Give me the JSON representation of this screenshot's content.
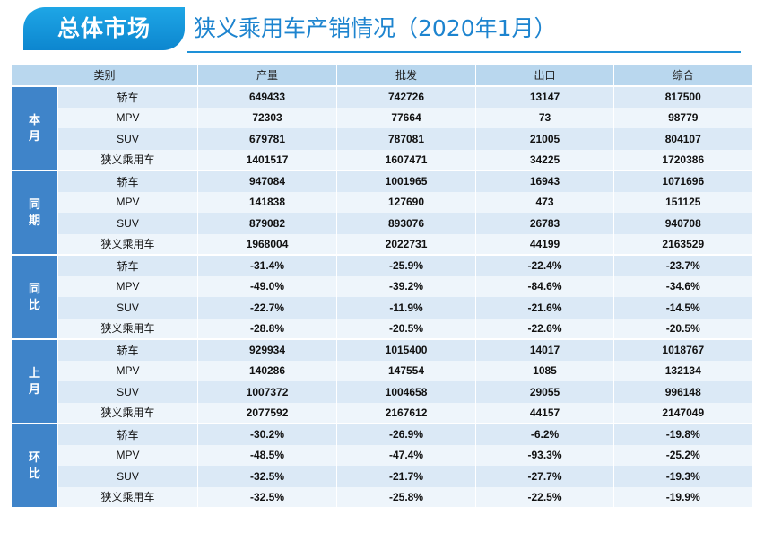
{
  "header": {
    "badge": "总体市场",
    "title": "狭义乘用车产销情况（2020年1月）"
  },
  "table": {
    "columns": [
      "类别",
      "产量",
      "批发",
      "出口",
      "综合"
    ],
    "groups": [
      {
        "label": "本\n月",
        "rows": [
          {
            "category": "轿车",
            "production": "649433",
            "wholesale": "742726",
            "export": "13147",
            "total": "817500"
          },
          {
            "category": "MPV",
            "production": "72303",
            "wholesale": "77664",
            "export": "73",
            "total": "98779"
          },
          {
            "category": "SUV",
            "production": "679781",
            "wholesale": "787081",
            "export": "21005",
            "total": "804107"
          },
          {
            "category": "狭义乘用车",
            "production": "1401517",
            "wholesale": "1607471",
            "export": "34225",
            "total": "1720386"
          }
        ]
      },
      {
        "label": "同\n期",
        "rows": [
          {
            "category": "轿车",
            "production": "947084",
            "wholesale": "1001965",
            "export": "16943",
            "total": "1071696"
          },
          {
            "category": "MPV",
            "production": "141838",
            "wholesale": "127690",
            "export": "473",
            "total": "151125"
          },
          {
            "category": "SUV",
            "production": "879082",
            "wholesale": "893076",
            "export": "26783",
            "total": "940708"
          },
          {
            "category": "狭义乘用车",
            "production": "1968004",
            "wholesale": "2022731",
            "export": "44199",
            "total": "2163529"
          }
        ]
      },
      {
        "label": "同\n比",
        "rows": [
          {
            "category": "轿车",
            "production": "-31.4%",
            "wholesale": "-25.9%",
            "export": "-22.4%",
            "total": "-23.7%"
          },
          {
            "category": "MPV",
            "production": "-49.0%",
            "wholesale": "-39.2%",
            "export": "-84.6%",
            "total": "-34.6%"
          },
          {
            "category": "SUV",
            "production": "-22.7%",
            "wholesale": "-11.9%",
            "export": "-21.6%",
            "total": "-14.5%"
          },
          {
            "category": "狭义乘用车",
            "production": "-28.8%",
            "wholesale": "-20.5%",
            "export": "-22.6%",
            "total": "-20.5%"
          }
        ]
      },
      {
        "label": "上\n月",
        "rows": [
          {
            "category": "轿车",
            "production": "929934",
            "wholesale": "1015400",
            "export": "14017",
            "total": "1018767"
          },
          {
            "category": "MPV",
            "production": "140286",
            "wholesale": "147554",
            "export": "1085",
            "total": "132134"
          },
          {
            "category": "SUV",
            "production": "1007372",
            "wholesale": "1004658",
            "export": "29055",
            "total": "996148"
          },
          {
            "category": "狭义乘用车",
            "production": "2077592",
            "wholesale": "2167612",
            "export": "44157",
            "total": "2147049"
          }
        ]
      },
      {
        "label": "环\n比",
        "rows": [
          {
            "category": "轿车",
            "production": "-30.2%",
            "wholesale": "-26.9%",
            "export": "-6.2%",
            "total": "-19.8%"
          },
          {
            "category": "MPV",
            "production": "-48.5%",
            "wholesale": "-47.4%",
            "export": "-93.3%",
            "total": "-25.2%"
          },
          {
            "category": "SUV",
            "production": "-32.5%",
            "wholesale": "-21.7%",
            "export": "-27.7%",
            "total": "-19.3%"
          },
          {
            "category": "狭义乘用车",
            "production": "-32.5%",
            "wholesale": "-25.8%",
            "export": "-22.5%",
            "total": "-19.9%"
          }
        ]
      }
    ]
  },
  "colors": {
    "badge_blue": "#0d86cf",
    "title_blue": "#1d84cf",
    "group_blue": "#3f84c9",
    "header_row": "#b9d7ee",
    "row_light": "#eef5fb",
    "row_dark": "#dbe9f6"
  }
}
